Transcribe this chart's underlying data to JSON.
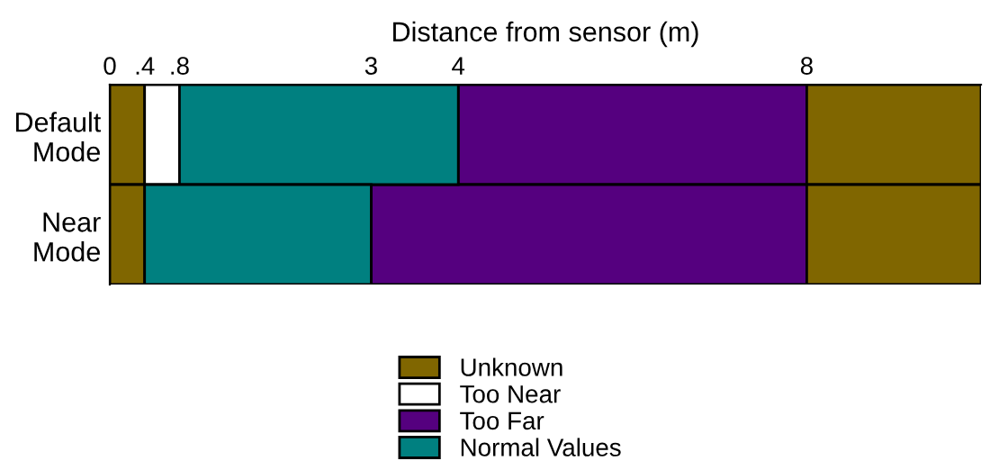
{
  "chart_data": {
    "type": "bar",
    "orientation": "horizontal",
    "xlabel": "Distance from sensor (m)",
    "categories": [
      "Default Mode",
      "Near Mode"
    ],
    "xlim": [
      0,
      10
    ],
    "xticks": [
      0,
      {
        "value": 0.4,
        "label": ".4"
      },
      {
        "value": 0.8,
        "label": ".8"
      },
      3,
      4,
      8
    ],
    "series": [
      {
        "name": "Unknown",
        "color": "#806600",
        "base": [
          0,
          0
        ],
        "values": [
          0.4,
          0.4
        ]
      },
      {
        "name": "Too Near",
        "color": "#ffffff",
        "base": [
          0.4,
          null
        ],
        "values": [
          0.4,
          null
        ]
      },
      {
        "name": "Too Far",
        "color": "#55007f",
        "base": [
          4,
          3
        ],
        "values": [
          4,
          5
        ]
      },
      {
        "name": "Normal Values",
        "color": "#008080",
        "base": [
          0.8,
          0.4
        ],
        "values": [
          3.2,
          2.6
        ]
      },
      {
        "color": "#806600",
        "base": [
          8,
          8
        ],
        "values": [
          2,
          2
        ]
      }
    ],
    "grid": false,
    "legend": "bottom"
  }
}
